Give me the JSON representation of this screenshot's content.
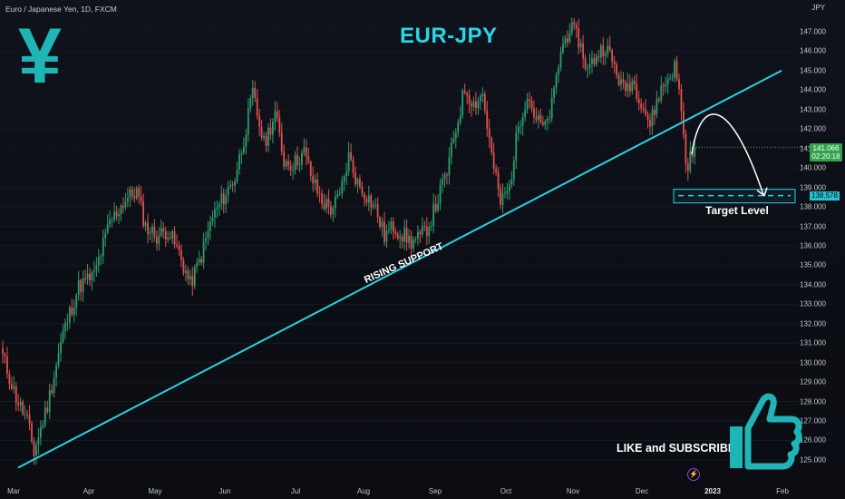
{
  "header": {
    "symbol_text": "Euro / Japanese Yen, 1D, FXCM",
    "currency": "JPY"
  },
  "chart_data": {
    "type": "candlestick",
    "title": "EUR-JPY",
    "y_ticks": [
      125.0,
      126.0,
      127.0,
      128.0,
      129.0,
      130.0,
      131.0,
      132.0,
      133.0,
      134.0,
      135.0,
      136.0,
      137.0,
      138.0,
      139.0,
      140.0,
      141.0,
      142.0,
      143.0,
      144.0,
      145.0,
      146.0,
      147.0
    ],
    "y_tick_labels": [
      "125.000",
      "126.000",
      "127.000",
      "128.000",
      "129.000",
      "130.000",
      "131.000",
      "132.000",
      "133.000",
      "134.000",
      "135.000",
      "136.000",
      "137.000",
      "138.000",
      "139.000",
      "140.000",
      "141.000",
      "142.000",
      "143.000",
      "144.000",
      "145.000",
      "146.000",
      "147.000"
    ],
    "x_tick_labels": [
      "Mar",
      "Apr",
      "May",
      "Jun",
      "Jul",
      "Aug",
      "Sep",
      "Oct",
      "Nov",
      "Dec",
      "2023",
      "Feb"
    ],
    "ylim": [
      124.5,
      147.8
    ],
    "last_price": {
      "value": "141.066",
      "countdown": "02:20:18"
    },
    "target": {
      "value": 138.578,
      "label": "138.578",
      "text": "Target Level"
    },
    "support_text": "RISING SUPPORT",
    "up_color": "#2e9e6e",
    "down_color": "#e2524d",
    "line_color": "#28d3e0",
    "key_closes": [
      [
        0,
        130.3
      ],
      [
        6,
        128.2
      ],
      [
        11,
        127.0
      ],
      [
        14,
        125.4
      ],
      [
        20,
        127.8
      ],
      [
        27,
        131.5
      ],
      [
        34,
        133.9
      ],
      [
        41,
        134.5
      ],
      [
        48,
        137.2
      ],
      [
        55,
        138.4
      ],
      [
        60,
        138.8
      ],
      [
        64,
        137.0
      ],
      [
        69,
        136.5
      ],
      [
        74,
        136.8
      ],
      [
        79,
        135.6
      ],
      [
        84,
        134.0
      ],
      [
        89,
        135.5
      ],
      [
        94,
        137.5
      ],
      [
        99,
        138.5
      ],
      [
        104,
        139.5
      ],
      [
        108,
        141.5
      ],
      [
        112,
        143.8
      ],
      [
        117,
        141.2
      ],
      [
        122,
        142.8
      ],
      [
        126,
        140.4
      ],
      [
        130,
        140.2
      ],
      [
        135,
        140.8
      ],
      [
        139,
        139.3
      ],
      [
        143,
        138.3
      ],
      [
        147,
        137.9
      ],
      [
        151,
        138.5
      ],
      [
        155,
        140.6
      ],
      [
        159,
        139.2
      ],
      [
        163,
        138.6
      ],
      [
        167,
        137.9
      ],
      [
        171,
        136.5
      ],
      [
        175,
        137.0
      ],
      [
        179,
        136.6
      ],
      [
        183,
        136.2
      ],
      [
        187,
        136.4
      ],
      [
        191,
        137.1
      ],
      [
        195,
        138.4
      ],
      [
        199,
        139.8
      ],
      [
        203,
        142.0
      ],
      [
        207,
        144.1
      ],
      [
        211,
        143.3
      ],
      [
        215,
        143.8
      ],
      [
        219,
        140.6
      ],
      [
        223,
        138.2
      ],
      [
        227,
        139.0
      ],
      [
        231,
        142.2
      ],
      [
        235,
        143.8
      ],
      [
        239,
        142.5
      ],
      [
        243,
        142.0
      ],
      [
        246,
        143.2
      ],
      [
        250,
        146.0
      ],
      [
        254,
        147.2
      ],
      [
        258,
        146.6
      ],
      [
        262,
        145.0
      ],
      [
        266,
        145.8
      ],
      [
        270,
        146.3
      ],
      [
        274,
        145.2
      ],
      [
        278,
        144.0
      ],
      [
        282,
        144.5
      ],
      [
        286,
        143.5
      ],
      [
        290,
        142.2
      ],
      [
        294,
        143.8
      ],
      [
        298,
        144.6
      ],
      [
        301,
        145.2
      ],
      [
        304,
        143.2
      ],
      [
        306,
        140.1
      ],
      [
        308,
        140.5
      ],
      [
        310,
        141.07
      ]
    ]
  },
  "labels": {
    "like": "LIKE and SUBSCRIBE",
    "thumbs_icon": "thumbs-up-icon",
    "yen_icon": "yen-icon",
    "yen_glyph": "¥"
  }
}
